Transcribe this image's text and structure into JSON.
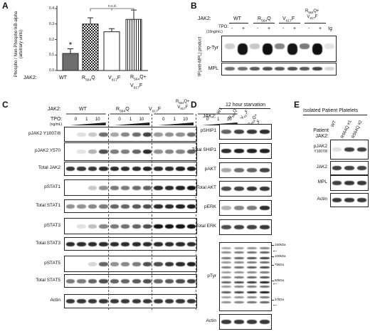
{
  "panels": {
    "A": {
      "letter": "A",
      "ylabel": "Phospho / Non-Phospho IkB-alpha (arbitrary units)",
      "jak2_label": "JAK2:",
      "significance": "n.s.d.",
      "star": "*",
      "colors": {
        "wt": "#6e6e6e",
        "r564q": "#222222"
      }
    },
    "B": {
      "letter": "B",
      "jak2_label": "JAK2:",
      "tpo_label": "TPO:",
      "tpo_unit": "(10ng/mL)",
      "ig_label": "Ig",
      "ip_label": "IP(anti-MPL) product",
      "rows": [
        "p-Tyr",
        "MPL"
      ]
    },
    "C": {
      "letter": "C",
      "jak2_label": "JAK2:",
      "tpo_label": "TPO:",
      "tpo_unit": "(ng/mL)",
      "rows": [
        "pJAK2 Y1007/8",
        "pJAK2 Y570",
        "Total JAK2",
        "pSTAT1",
        "Total STAT1",
        "pSTAT3",
        "Total STAT3",
        "pSTAT5",
        "Total STAT5",
        "Actin"
      ]
    },
    "D": {
      "letter": "D",
      "title": "12 hour starvation",
      "jak2_label": "JAK2:",
      "rows": [
        "pSHIP1",
        "Total SHIP1",
        "pAKT",
        "Total AKT",
        "pERK",
        "Total ERK",
        "pTyr",
        "Actin"
      ],
      "markers": [
        "150kDa",
        "100kDa",
        "75kDa",
        "50kDa",
        "37kDa"
      ]
    },
    "E": {
      "letter": "E",
      "title": "Isolated Patient Platelets",
      "patient_label": "Patient",
      "jak2_label": "JAK2:",
      "columns": [
        "WT",
        "R564Q #1",
        "R564Q #2"
      ],
      "rows": [
        "pJAK2",
        "JAK2",
        "MPL",
        "Actin"
      ],
      "row_sub": "Y1007/8"
    }
  },
  "genotypes": {
    "wt": "WT",
    "r": "R",
    "r_sub": "564",
    "q": "Q",
    "v": "V",
    "v_sub": "617",
    "f": "F",
    "plus": "+"
  },
  "tpo_values": {
    "zero": "0",
    "one": "1",
    "ten": "10",
    "minus": "-",
    "plus": "+"
  },
  "chart_data": {
    "type": "bar",
    "categories": [
      "WT",
      "R564Q",
      "V617F",
      "R564Q+V617F"
    ],
    "values": [
      0.11,
      0.3,
      0.25,
      0.33
    ],
    "errors": [
      0.03,
      0.04,
      0.02,
      0.06
    ],
    "ylabel": "Phospho / Non-Phospho IkB-alpha (arbitrary units)",
    "xlabel": "JAK2:",
    "ylim": [
      0,
      0.4
    ],
    "yticks": [
      "0.0",
      "0.1",
      "0.2",
      "0.3",
      "0.4"
    ],
    "annotations": [
      "*",
      "n.s.d."
    ],
    "grid": false,
    "legend": "none"
  }
}
